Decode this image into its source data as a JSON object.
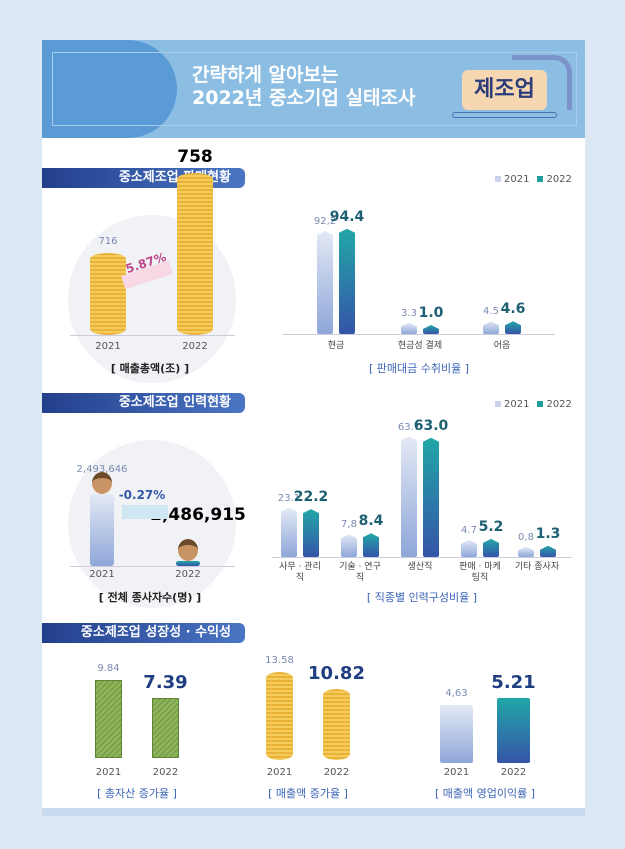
{
  "banner": {
    "title_line1": "간략하게 알아보는",
    "title_line2": "2022년 중소기업 실태조사",
    "badge": "제조업"
  },
  "legend": {
    "y2021": "2021",
    "y2022": "2022",
    "color_2021": "#c9d3e8",
    "color_2022": "#1f9e9c"
  },
  "sections": {
    "sales": "중소제조업 판매현황",
    "workforce": "중소제조업 인력현황",
    "growth": "중소제조업 성장성 · 수익성"
  },
  "chart_data": [
    {
      "type": "bar",
      "title": "[ 매출총액(조) ]",
      "categories": [
        "2021",
        "2022"
      ],
      "values": [
        716,
        758
      ],
      "labels": [
        "716",
        "758"
      ],
      "annotation": "5.87%",
      "icon": "coin-stack"
    },
    {
      "type": "bar",
      "title": "[ 판매대금 수취비율 ]",
      "categories": [
        "현금",
        "현금성 결제",
        "어음"
      ],
      "series": [
        {
          "name": "2021",
          "values": [
            92.2,
            3.3,
            4.5
          ],
          "labels": [
            "92,2",
            "3.3",
            "4.5"
          ]
        },
        {
          "name": "2022",
          "values": [
            94.4,
            1.0,
            4.6
          ],
          "labels": [
            "94.4",
            "1.0",
            "4.6"
          ]
        }
      ]
    },
    {
      "type": "bar",
      "title": "[ 전체 종사자수(명) ]",
      "categories": [
        "2021",
        "2022"
      ],
      "values": [
        2493646,
        2486915
      ],
      "labels": [
        "2,493,646",
        "2,486,915"
      ],
      "annotation": "-0.27%",
      "icon": "person"
    },
    {
      "type": "bar",
      "title": "[ 직종별 인력구성비율 ]",
      "categories": [
        "사무 · 관리직",
        "기술 · 연구직",
        "생산직",
        "판매 · 마케팅직",
        "기타 종사자"
      ],
      "series": [
        {
          "name": "2021",
          "values": [
            23.1,
            7.8,
            63.7,
            4.7,
            0.8
          ],
          "labels": [
            "23.1",
            "7,8",
            "63.7",
            "4.7",
            "0,8"
          ]
        },
        {
          "name": "2022",
          "values": [
            22.2,
            8.4,
            63.0,
            5.2,
            1.3
          ],
          "labels": [
            "22.2",
            "8.4",
            "63.0",
            "5.2",
            "1.3"
          ]
        }
      ]
    },
    {
      "type": "bar",
      "title": "[ 총자산 증가율 ]",
      "categories": [
        "2021",
        "2022"
      ],
      "values": [
        9.84,
        7.39
      ],
      "labels": [
        "9.84",
        "7.39"
      ],
      "icon": "cash-stack"
    },
    {
      "type": "bar",
      "title": "[ 매출액 증가율 ]",
      "categories": [
        "2021",
        "2022"
      ],
      "values": [
        13.58,
        10.82
      ],
      "labels": [
        "13.58",
        "10.82"
      ],
      "icon": "coin-stack"
    },
    {
      "type": "bar",
      "title": "[ 매출액 영업이익률 ]",
      "categories": [
        "2021",
        "2022"
      ],
      "values": [
        4.63,
        5.21
      ],
      "labels": [
        "4,63",
        "5.21"
      ],
      "icon": "prism"
    }
  ]
}
